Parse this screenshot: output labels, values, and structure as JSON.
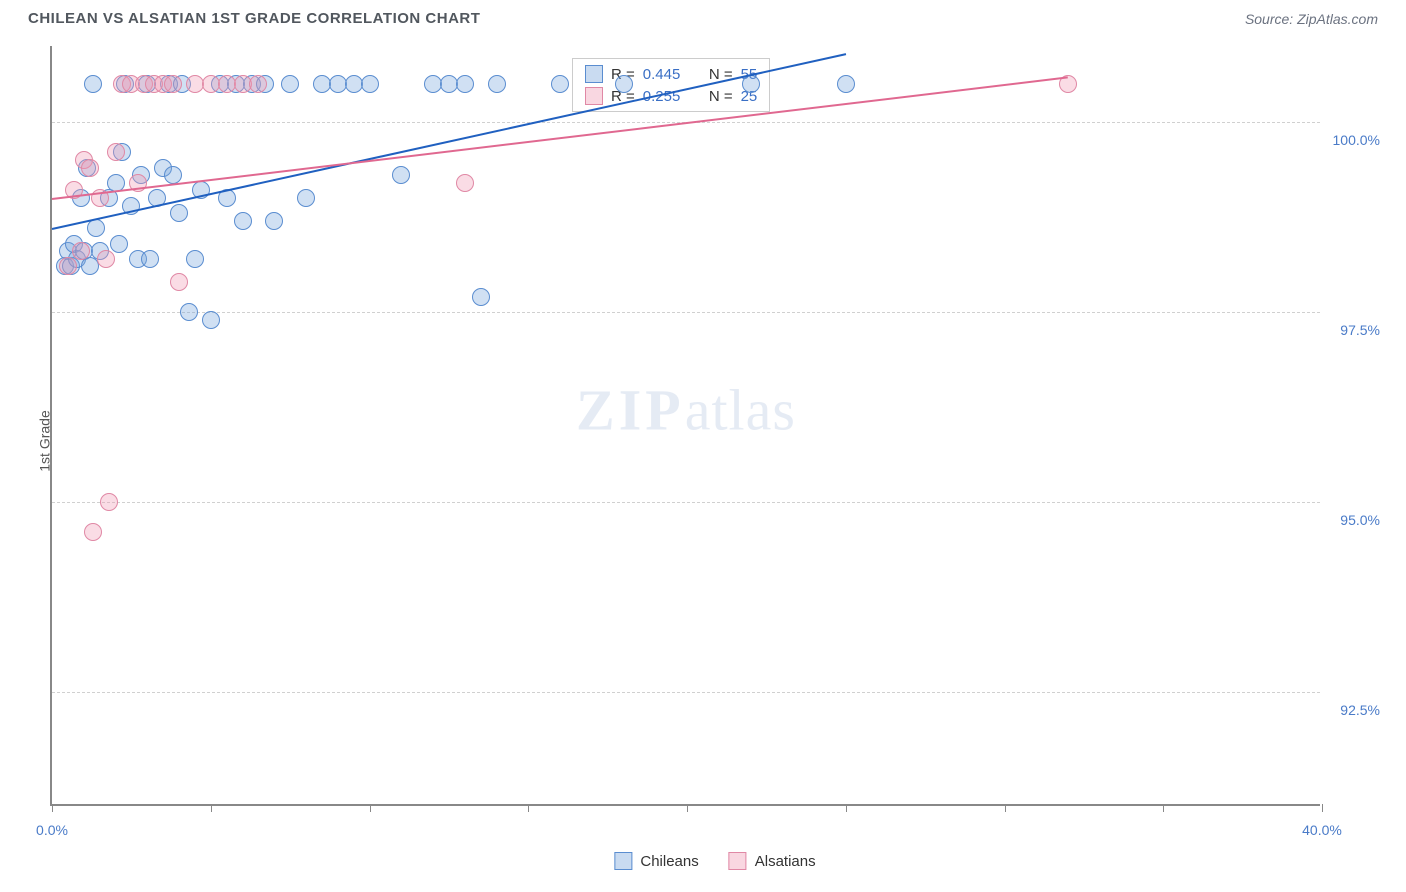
{
  "header": {
    "title": "CHILEAN VS ALSATIAN 1ST GRADE CORRELATION CHART",
    "source_prefix": "Source: ",
    "source": "ZipAtlas.com"
  },
  "chart": {
    "type": "scatter",
    "y_axis_title": "1st Grade",
    "xlim": [
      0,
      40
    ],
    "ylim": [
      91,
      101
    ],
    "x_ticks": [
      0,
      5,
      10,
      15,
      20,
      25,
      30,
      35,
      40
    ],
    "x_tick_labels": {
      "0": "0.0%",
      "40": "40.0%"
    },
    "y_ticks": [
      92.5,
      95.0,
      97.5,
      100.0
    ],
    "y_tick_labels": [
      "92.5%",
      "95.0%",
      "97.5%",
      "100.0%"
    ],
    "grid_color": "#d0d0d0",
    "background_color": "#ffffff",
    "axis_color": "#888888",
    "tick_label_color": "#4a7bc8",
    "marker_radius": 9,
    "watermark": {
      "zip": "ZIP",
      "atlas": "atlas"
    },
    "series": [
      {
        "name": "Chileans",
        "color_fill": "rgba(120,165,220,0.35)",
        "color_stroke": "#5a8dd0",
        "trend_color": "#2060c0",
        "R": "0.445",
        "N": "55",
        "trend": {
          "x1": 0,
          "y1": 98.6,
          "x2": 25,
          "y2": 100.9
        },
        "points": [
          [
            0.4,
            98.1
          ],
          [
            0.5,
            98.3
          ],
          [
            0.6,
            98.1
          ],
          [
            0.7,
            98.4
          ],
          [
            0.8,
            98.2
          ],
          [
            0.9,
            99.0
          ],
          [
            1.0,
            98.3
          ],
          [
            1.1,
            99.4
          ],
          [
            1.2,
            98.1
          ],
          [
            1.3,
            100.5
          ],
          [
            1.4,
            98.6
          ],
          [
            1.5,
            98.3
          ],
          [
            1.8,
            99.0
          ],
          [
            2.0,
            99.2
          ],
          [
            2.1,
            98.4
          ],
          [
            2.2,
            99.6
          ],
          [
            2.3,
            100.5
          ],
          [
            2.5,
            98.9
          ],
          [
            2.7,
            98.2
          ],
          [
            2.8,
            99.3
          ],
          [
            3.0,
            100.5
          ],
          [
            3.1,
            98.2
          ],
          [
            3.3,
            99.0
          ],
          [
            3.5,
            99.4
          ],
          [
            3.7,
            100.5
          ],
          [
            3.8,
            99.3
          ],
          [
            4.0,
            98.8
          ],
          [
            4.1,
            100.5
          ],
          [
            4.3,
            97.5
          ],
          [
            4.5,
            98.2
          ],
          [
            4.7,
            99.1
          ],
          [
            5.0,
            97.4
          ],
          [
            5.3,
            100.5
          ],
          [
            5.5,
            99.0
          ],
          [
            5.8,
            100.5
          ],
          [
            6.0,
            98.7
          ],
          [
            6.3,
            100.5
          ],
          [
            6.7,
            100.5
          ],
          [
            7.0,
            98.7
          ],
          [
            7.5,
            100.5
          ],
          [
            8.0,
            99.0
          ],
          [
            8.5,
            100.5
          ],
          [
            9.0,
            100.5
          ],
          [
            9.5,
            100.5
          ],
          [
            10.0,
            100.5
          ],
          [
            11.0,
            99.3
          ],
          [
            12.0,
            100.5
          ],
          [
            12.5,
            100.5
          ],
          [
            13.0,
            100.5
          ],
          [
            13.5,
            97.7
          ],
          [
            14.0,
            100.5
          ],
          [
            16.0,
            100.5
          ],
          [
            18.0,
            100.5
          ],
          [
            22.0,
            100.5
          ],
          [
            25.0,
            100.5
          ]
        ]
      },
      {
        "name": "Alsatians",
        "color_fill": "rgba(240,155,180,0.35)",
        "color_stroke": "#e088a5",
        "trend_color": "#e06890",
        "R": "0.255",
        "N": "25",
        "trend": {
          "x1": 0,
          "y1": 99.0,
          "x2": 32,
          "y2": 100.6
        },
        "points": [
          [
            0.5,
            98.1
          ],
          [
            0.7,
            99.1
          ],
          [
            0.9,
            98.3
          ],
          [
            1.0,
            99.5
          ],
          [
            1.2,
            99.4
          ],
          [
            1.3,
            94.6
          ],
          [
            1.5,
            99.0
          ],
          [
            1.7,
            98.2
          ],
          [
            1.8,
            95.0
          ],
          [
            2.0,
            99.6
          ],
          [
            2.2,
            100.5
          ],
          [
            2.5,
            100.5
          ],
          [
            2.7,
            99.2
          ],
          [
            2.9,
            100.5
          ],
          [
            3.2,
            100.5
          ],
          [
            3.5,
            100.5
          ],
          [
            3.8,
            100.5
          ],
          [
            4.0,
            97.9
          ],
          [
            4.5,
            100.5
          ],
          [
            5.0,
            100.5
          ],
          [
            5.5,
            100.5
          ],
          [
            6.0,
            100.5
          ],
          [
            6.5,
            100.5
          ],
          [
            13.0,
            99.2
          ],
          [
            32.0,
            100.5
          ]
        ]
      }
    ],
    "stats_legend": {
      "R_label": "R =",
      "N_label": "N ="
    },
    "bottom_legend": [
      "Chileans",
      "Alsatians"
    ]
  }
}
